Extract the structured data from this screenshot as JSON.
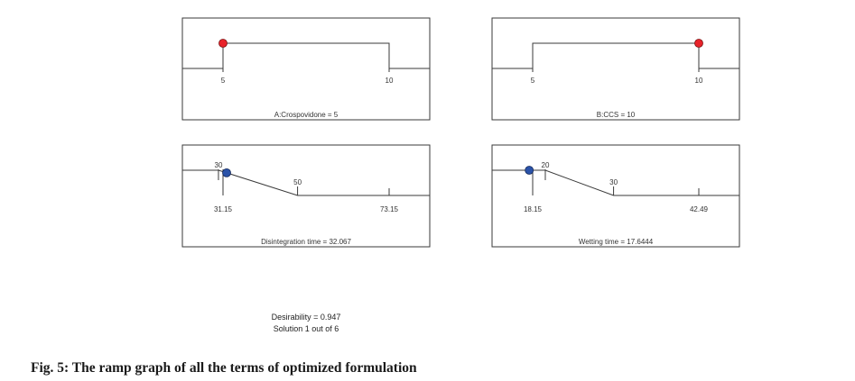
{
  "caption": "Fig. 5: The ramp graph of all the terms of optimized formulation",
  "summary": {
    "desirability": "Desirability = 0.947",
    "solution": "Solution 1 out of 6"
  },
  "chart_data": [
    {
      "type": "ramp",
      "kind": "factor",
      "title": "A:Crospovidone = 5",
      "goal": "minimize",
      "range": [
        5,
        10
      ],
      "tick_labels": [
        "5",
        "10"
      ],
      "solution": 5,
      "point_color": "#e8232a"
    },
    {
      "type": "ramp",
      "kind": "factor",
      "title": "B:CCS = 10",
      "goal": "maximize",
      "range": [
        5,
        10
      ],
      "tick_labels": [
        "5",
        "10"
      ],
      "solution": 10,
      "point_color": "#e8232a"
    },
    {
      "type": "ramp",
      "kind": "response",
      "title": "Disintegration time = 32.067",
      "goal": "minimize",
      "range": [
        31.15,
        73.15
      ],
      "tick_labels": [
        "31.15",
        "73.15"
      ],
      "target_low": 30,
      "target_high": 50,
      "target_labels": [
        "30",
        "50"
      ],
      "solution": 32.067,
      "point_color": "#2a52a8"
    },
    {
      "type": "ramp",
      "kind": "response",
      "title": "Wetting time = 17.6444",
      "goal": "minimize",
      "range": [
        18.15,
        42.49
      ],
      "tick_labels": [
        "18.15",
        "42.49"
      ],
      "target_low": 20,
      "target_high": 30,
      "target_labels": [
        "20",
        "30"
      ],
      "solution": 17.6444,
      "point_color": "#2a52a8"
    }
  ]
}
